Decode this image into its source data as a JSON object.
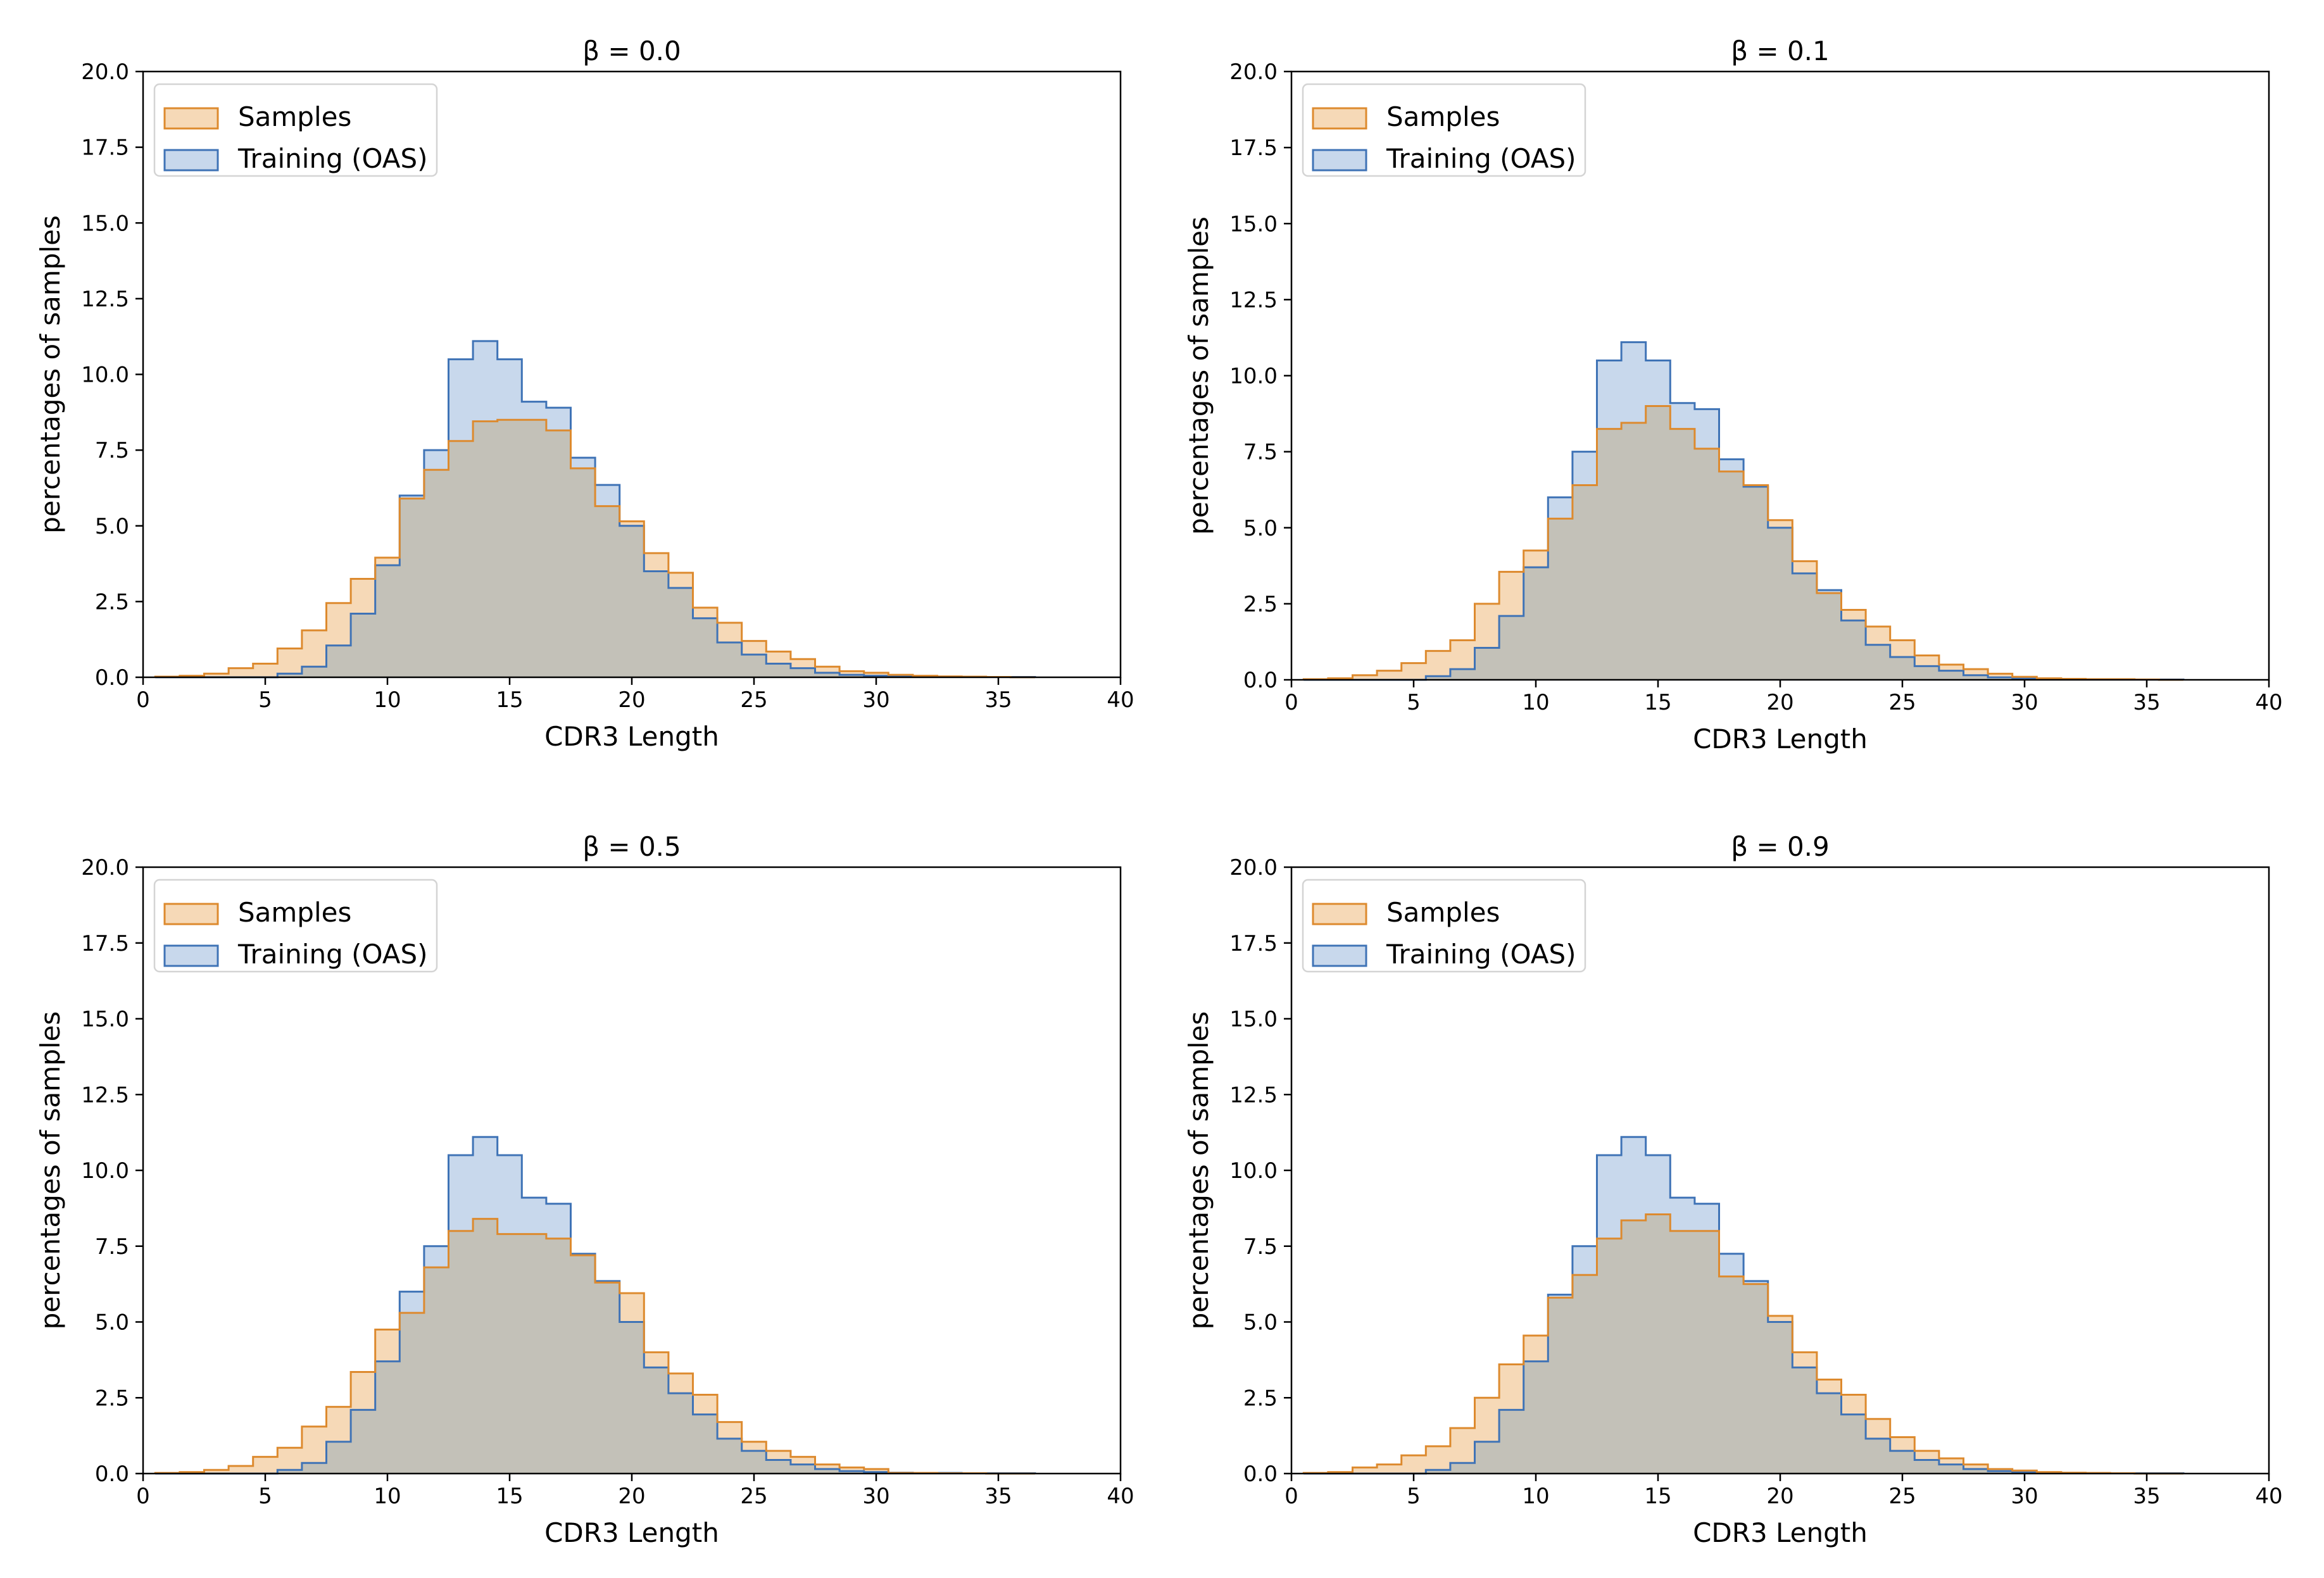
{
  "colors": {
    "samples_fill": "#f6d9b7",
    "samples_edge": "#dd8a2e",
    "training_fill": "#c8d8ec",
    "training_edge": "#3f73b6",
    "overlap_fill": "#c3c1b8"
  },
  "chart_data": [
    {
      "type": "histogram-step",
      "title": "β = 0.0",
      "xlabel": "CDR3 Length",
      "ylabel": "percentages of samples",
      "xlim": [
        0,
        40
      ],
      "ylim": [
        0,
        20
      ],
      "xticks": [
        "0",
        "5",
        "10",
        "15",
        "20",
        "25",
        "30",
        "35",
        "40"
      ],
      "yticks": [
        "0.0",
        "2.5",
        "5.0",
        "7.5",
        "10.0",
        "12.5",
        "15.0",
        "17.5",
        "20.0"
      ],
      "legend": {
        "position": "upper-left",
        "entries": [
          "Samples",
          "Training (OAS)"
        ]
      },
      "bin_edges": [
        0.5,
        1.5,
        2.5,
        3.5,
        4.5,
        5.5,
        6.5,
        7.5,
        8.5,
        9.5,
        10.5,
        11.5,
        12.5,
        13.5,
        14.5,
        15.5,
        16.5,
        17.5,
        18.5,
        19.5,
        20.5,
        21.5,
        22.5,
        23.5,
        24.5,
        25.5,
        26.5,
        27.5,
        28.5,
        29.5,
        30.5,
        31.5,
        32.5,
        33.5,
        34.5,
        35.5,
        36.5
      ],
      "series": [
        {
          "name": "Samples",
          "values": [
            0.02,
            0.05,
            0.12,
            0.3,
            0.45,
            0.95,
            1.55,
            2.45,
            3.25,
            3.95,
            5.9,
            6.85,
            7.8,
            8.45,
            8.5,
            8.5,
            8.15,
            6.9,
            5.65,
            5.15,
            4.1,
            3.45,
            2.3,
            1.8,
            1.2,
            0.85,
            0.6,
            0.35,
            0.2,
            0.15,
            0.08,
            0.05,
            0.03,
            0.02,
            0.01,
            0.0
          ]
        },
        {
          "name": "Training (OAS)",
          "values": [
            0.0,
            0.0,
            0.0,
            0.0,
            0.0,
            0.12,
            0.35,
            1.05,
            2.1,
            3.7,
            6.0,
            7.5,
            10.5,
            11.1,
            10.5,
            9.1,
            8.9,
            7.25,
            6.35,
            5.0,
            3.5,
            2.95,
            1.95,
            1.15,
            0.75,
            0.45,
            0.3,
            0.15,
            0.08,
            0.05,
            0.03,
            0.02,
            0.02,
            0.01,
            0.01,
            0.01
          ]
        }
      ]
    },
    {
      "type": "histogram-step",
      "title": "β = 0.1",
      "xlabel": "CDR3 Length",
      "ylabel": "percentages of samples",
      "xlim": [
        0,
        40
      ],
      "ylim": [
        0,
        20
      ],
      "xticks": [
        "0",
        "5",
        "10",
        "15",
        "20",
        "25",
        "30",
        "35",
        "40"
      ],
      "yticks": [
        "0.0",
        "2.5",
        "5.0",
        "7.5",
        "10.0",
        "12.5",
        "15.0",
        "17.5",
        "20.0"
      ],
      "legend": {
        "position": "upper-left",
        "entries": [
          "Samples",
          "Training (OAS)"
        ]
      },
      "bin_edges": [
        0.5,
        1.5,
        2.5,
        3.5,
        4.5,
        5.5,
        6.5,
        7.5,
        8.5,
        9.5,
        10.5,
        11.5,
        12.5,
        13.5,
        14.5,
        15.5,
        16.5,
        17.5,
        18.5,
        19.5,
        20.5,
        21.5,
        22.5,
        23.5,
        24.5,
        25.5,
        26.5,
        27.5,
        28.5,
        29.5,
        30.5,
        31.5,
        32.5,
        33.5,
        34.5,
        35.5,
        36.5
      ],
      "series": [
        {
          "name": "Samples",
          "values": [
            0.02,
            0.05,
            0.15,
            0.3,
            0.55,
            0.95,
            1.3,
            2.5,
            3.55,
            4.25,
            5.3,
            6.4,
            8.25,
            8.45,
            9.0,
            8.25,
            7.6,
            6.85,
            6.4,
            5.25,
            3.9,
            2.85,
            2.3,
            1.75,
            1.3,
            0.8,
            0.5,
            0.35,
            0.2,
            0.1,
            0.05,
            0.03,
            0.02,
            0.02,
            0.01,
            0.0
          ]
        },
        {
          "name": "Training (OAS)",
          "values": [
            0.0,
            0.0,
            0.0,
            0.0,
            0.0,
            0.12,
            0.35,
            1.05,
            2.1,
            3.7,
            6.0,
            7.5,
            10.5,
            11.1,
            10.5,
            9.1,
            8.9,
            7.25,
            6.35,
            5.0,
            3.5,
            2.95,
            1.95,
            1.15,
            0.75,
            0.45,
            0.3,
            0.15,
            0.08,
            0.05,
            0.03,
            0.02,
            0.02,
            0.01,
            0.01,
            0.01
          ]
        }
      ]
    },
    {
      "type": "histogram-step",
      "title": "β = 0.5",
      "xlabel": "CDR3 Length",
      "ylabel": "percentages of samples",
      "xlim": [
        0,
        40
      ],
      "ylim": [
        0,
        20
      ],
      "xticks": [
        "0",
        "5",
        "10",
        "15",
        "20",
        "25",
        "30",
        "35",
        "40"
      ],
      "yticks": [
        "0.0",
        "2.5",
        "5.0",
        "7.5",
        "10.0",
        "12.5",
        "15.0",
        "17.5",
        "20.0"
      ],
      "legend": {
        "position": "upper-left",
        "entries": [
          "Samples",
          "Training (OAS)"
        ]
      },
      "bin_edges": [
        0.5,
        1.5,
        2.5,
        3.5,
        4.5,
        5.5,
        6.5,
        7.5,
        8.5,
        9.5,
        10.5,
        11.5,
        12.5,
        13.5,
        14.5,
        15.5,
        16.5,
        17.5,
        18.5,
        19.5,
        20.5,
        21.5,
        22.5,
        23.5,
        24.5,
        25.5,
        26.5,
        27.5,
        28.5,
        29.5,
        30.5,
        31.5,
        32.5,
        33.5,
        34.5,
        35.5,
        36.5
      ],
      "series": [
        {
          "name": "Samples",
          "values": [
            0.02,
            0.05,
            0.12,
            0.25,
            0.55,
            0.85,
            1.55,
            2.2,
            3.35,
            4.75,
            5.3,
            6.8,
            8.0,
            8.4,
            7.9,
            7.9,
            7.75,
            7.2,
            6.3,
            5.95,
            4.0,
            3.3,
            2.6,
            1.7,
            1.05,
            0.75,
            0.55,
            0.3,
            0.2,
            0.15,
            0.02,
            0.02,
            0.01,
            0.01,
            0.0,
            0.0
          ]
        },
        {
          "name": "Training (OAS)",
          "values": [
            0.0,
            0.0,
            0.0,
            0.0,
            0.0,
            0.12,
            0.35,
            1.05,
            2.1,
            3.7,
            6.0,
            7.5,
            10.5,
            11.1,
            10.5,
            9.1,
            8.9,
            7.25,
            6.35,
            5.0,
            3.5,
            2.65,
            1.95,
            1.15,
            0.75,
            0.45,
            0.3,
            0.15,
            0.08,
            0.05,
            0.03,
            0.02,
            0.02,
            0.01,
            0.01,
            0.01
          ]
        }
      ]
    },
    {
      "type": "histogram-step",
      "title": "β = 0.9",
      "xlabel": "CDR3 Length",
      "ylabel": "percentages of samples",
      "xlim": [
        0,
        40
      ],
      "ylim": [
        0,
        20
      ],
      "xticks": [
        "0",
        "5",
        "10",
        "15",
        "20",
        "25",
        "30",
        "35",
        "40"
      ],
      "yticks": [
        "0.0",
        "2.5",
        "5.0",
        "7.5",
        "10.0",
        "12.5",
        "15.0",
        "17.5",
        "20.0"
      ],
      "legend": {
        "position": "upper-left",
        "entries": [
          "Samples",
          "Training (OAS)"
        ]
      },
      "bin_edges": [
        0.5,
        1.5,
        2.5,
        3.5,
        4.5,
        5.5,
        6.5,
        7.5,
        8.5,
        9.5,
        10.5,
        11.5,
        12.5,
        13.5,
        14.5,
        15.5,
        16.5,
        17.5,
        18.5,
        19.5,
        20.5,
        21.5,
        22.5,
        23.5,
        24.5,
        25.5,
        26.5,
        27.5,
        28.5,
        29.5,
        30.5,
        31.5,
        32.5,
        33.5,
        34.5,
        35.5,
        36.5
      ],
      "series": [
        {
          "name": "Samples",
          "values": [
            0.02,
            0.05,
            0.2,
            0.3,
            0.6,
            0.9,
            1.5,
            2.5,
            3.6,
            4.55,
            5.8,
            6.55,
            7.75,
            8.35,
            8.55,
            8.0,
            8.0,
            6.5,
            6.25,
            5.2,
            4.0,
            3.1,
            2.6,
            1.8,
            1.2,
            0.75,
            0.5,
            0.3,
            0.15,
            0.1,
            0.05,
            0.03,
            0.02,
            0.01,
            0.0,
            0.0
          ]
        },
        {
          "name": "Training (OAS)",
          "values": [
            0.0,
            0.0,
            0.0,
            0.0,
            0.0,
            0.12,
            0.35,
            1.05,
            2.1,
            3.7,
            5.9,
            7.5,
            10.5,
            11.1,
            10.5,
            9.1,
            8.9,
            7.25,
            6.35,
            5.0,
            3.5,
            2.65,
            1.95,
            1.15,
            0.75,
            0.45,
            0.3,
            0.15,
            0.08,
            0.05,
            0.03,
            0.02,
            0.02,
            0.01,
            0.01,
            0.01
          ]
        }
      ]
    }
  ]
}
